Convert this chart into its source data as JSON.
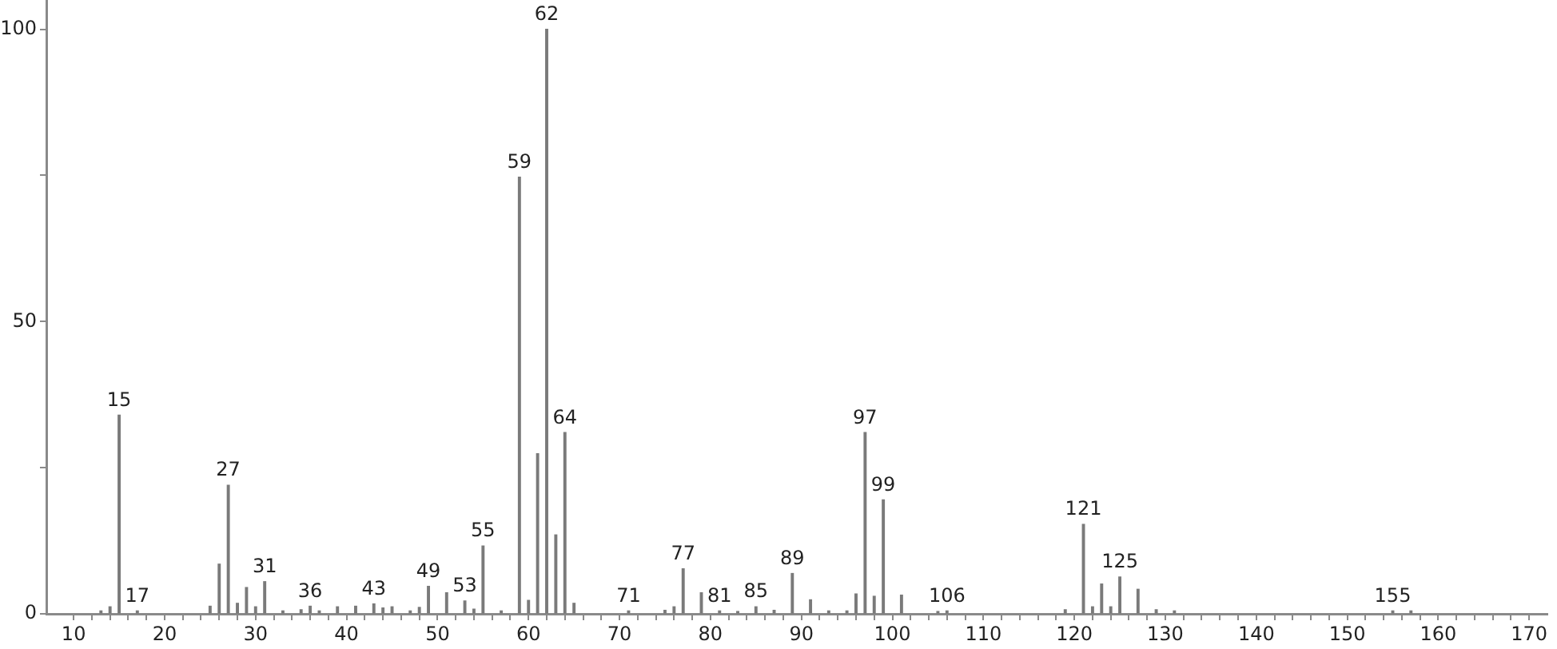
{
  "chart_data": {
    "type": "bar",
    "x": [
      13,
      14,
      15,
      17,
      25,
      26,
      27,
      28,
      29,
      30,
      31,
      33,
      35,
      36,
      37,
      39,
      41,
      43,
      44,
      45,
      47,
      48,
      49,
      51,
      53,
      54,
      55,
      57,
      59,
      60,
      61,
      62,
      63,
      64,
      65,
      71,
      75,
      76,
      77,
      79,
      81,
      83,
      85,
      87,
      89,
      91,
      93,
      95,
      96,
      97,
      98,
      99,
      101,
      105,
      106,
      119,
      121,
      122,
      123,
      124,
      125,
      127,
      129,
      131,
      155,
      157
    ],
    "values": [
      0.5,
      1.2,
      34,
      0.5,
      1.3,
      8.5,
      22,
      1.8,
      4.5,
      1.2,
      5.5,
      0.5,
      0.7,
      1.3,
      0.5,
      1.2,
      1.3,
      1.7,
      1,
      1.2,
      0.5,
      1.1,
      4.7,
      3.6,
      2.2,
      0.8,
      11.6,
      0.5,
      74.7,
      2.3,
      27.4,
      100,
      13.5,
      31,
      1.8,
      0.5,
      0.6,
      1.2,
      7.7,
      3.6,
      0.5,
      0.4,
      1.2,
      0.6,
      6.9,
      2.4,
      0.5,
      0.5,
      3.4,
      31,
      3,
      19.5,
      3.2,
      0.4,
      0.5,
      0.7,
      15.3,
      1.2,
      5.1,
      1.2,
      6.3,
      4.2,
      0.7,
      0.5,
      0.5,
      0.5
    ],
    "color": "#7a7a7a",
    "xlim": [
      7,
      172
    ],
    "xticks": [
      10,
      {
        "value": 12,
        "label": null
      },
      {
        "value": 14,
        "label": null
      },
      {
        "value": 16,
        "label": null
      },
      {
        "value": 18,
        "label": null
      },
      20,
      {
        "value": 22,
        "label": null
      },
      {
        "value": 24,
        "label": null
      },
      {
        "value": 26,
        "label": null
      },
      {
        "value": 28,
        "label": null
      },
      30,
      {
        "value": 32,
        "label": null
      },
      {
        "value": 34,
        "label": null
      },
      {
        "value": 36,
        "label": null
      },
      {
        "value": 38,
        "label": null
      },
      40,
      {
        "value": 42,
        "label": null
      },
      {
        "value": 44,
        "label": null
      },
      {
        "value": 46,
        "label": null
      },
      {
        "value": 48,
        "label": null
      },
      50,
      {
        "value": 52,
        "label": null
      },
      {
        "value": 54,
        "label": null
      },
      {
        "value": 56,
        "label": null
      },
      {
        "value": 58,
        "label": null
      },
      60,
      {
        "value": 62,
        "label": null
      },
      {
        "value": 64,
        "label": null
      },
      {
        "value": 66,
        "label": null
      },
      {
        "value": 68,
        "label": null
      },
      70,
      {
        "value": 72,
        "label": null
      },
      {
        "value": 74,
        "label": null
      },
      {
        "value": 76,
        "label": null
      },
      {
        "value": 78,
        "label": null
      },
      80,
      {
        "value": 82,
        "label": null
      },
      {
        "value": 84,
        "label": null
      },
      {
        "value": 86,
        "label": null
      },
      {
        "value": 88,
        "label": null
      },
      90,
      {
        "value": 92,
        "label": null
      },
      {
        "value": 94,
        "label": null
      },
      {
        "value": 96,
        "label": null
      },
      {
        "value": 98,
        "label": null
      },
      100,
      {
        "value": 102,
        "label": null
      },
      {
        "value": 104,
        "label": null
      },
      {
        "value": 106,
        "label": null
      },
      {
        "value": 108,
        "label": null
      },
      110,
      {
        "value": 112,
        "label": null
      },
      {
        "value": 114,
        "label": null
      },
      {
        "value": 116,
        "label": null
      },
      {
        "value": 118,
        "label": null
      },
      120,
      {
        "value": 122,
        "label": null
      },
      {
        "value": 124,
        "label": null
      },
      {
        "value": 126,
        "label": null
      },
      {
        "value": 128,
        "label": null
      },
      130,
      {
        "value": 132,
        "label": null
      },
      {
        "value": 134,
        "label": null
      },
      {
        "value": 136,
        "label": null
      },
      {
        "value": 138,
        "label": null
      },
      140,
      {
        "value": 142,
        "label": null
      },
      {
        "value": 144,
        "label": null
      },
      {
        "value": 146,
        "label": null
      },
      {
        "value": 148,
        "label": null
      },
      150,
      {
        "value": 152,
        "label": null
      },
      {
        "value": 154,
        "label": null
      },
      {
        "value": 156,
        "label": null
      },
      {
        "value": 158,
        "label": null
      },
      160,
      {
        "value": 162,
        "label": null
      },
      {
        "value": 164,
        "label": null
      },
      {
        "value": 166,
        "label": null
      },
      {
        "value": 168,
        "label": null
      },
      170
    ],
    "ylim": [
      0,
      105
    ],
    "yticks": [
      0,
      {
        "value": 25,
        "label": null
      },
      50,
      {
        "value": 75,
        "label": null
      },
      100
    ],
    "annotations": [
      {
        "text": "15",
        "x": 15,
        "y": 34
      },
      {
        "text": "17",
        "x": 17,
        "y": 0.5
      },
      {
        "text": "27",
        "x": 27,
        "y": 22
      },
      {
        "text": "31",
        "x": 31,
        "y": 5.5
      },
      {
        "text": "36",
        "x": 36,
        "y": 1.3
      },
      {
        "text": "43",
        "x": 43,
        "y": 1.7
      },
      {
        "text": "49",
        "x": 49,
        "y": 4.7
      },
      {
        "text": "53",
        "x": 53,
        "y": 2.2
      },
      {
        "text": "55",
        "x": 55,
        "y": 11.6
      },
      {
        "text": "59",
        "x": 59,
        "y": 74.7
      },
      {
        "text": "62",
        "x": 62,
        "y": 100
      },
      {
        "text": "64",
        "x": 64,
        "y": 31
      },
      {
        "text": "71",
        "x": 71,
        "y": 0.5
      },
      {
        "text": "77",
        "x": 77,
        "y": 7.7
      },
      {
        "text": "81",
        "x": 81,
        "y": 0.5
      },
      {
        "text": "85",
        "x": 85,
        "y": 1.2
      },
      {
        "text": "89",
        "x": 89,
        "y": 6.9
      },
      {
        "text": "97",
        "x": 97,
        "y": 31
      },
      {
        "text": "99",
        "x": 99,
        "y": 19.5
      },
      {
        "text": "106",
        "x": 106,
        "y": 0.5
      },
      {
        "text": "121",
        "x": 121,
        "y": 15.3
      },
      {
        "text": "125",
        "x": 125,
        "y": 6.3
      },
      {
        "text": "155",
        "x": 155,
        "y": 0.5
      }
    ]
  }
}
